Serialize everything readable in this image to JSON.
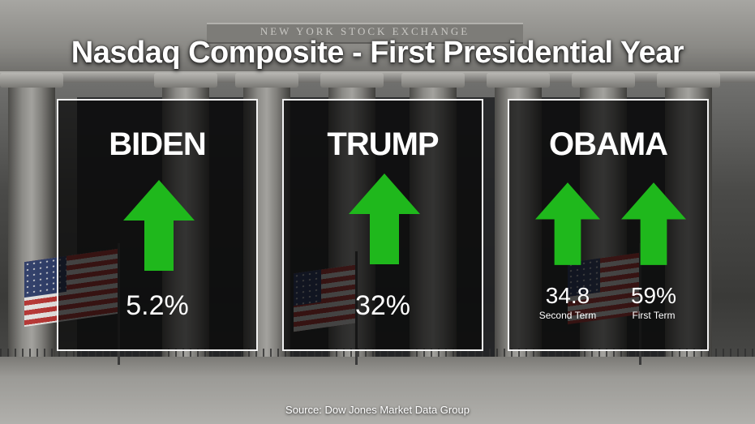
{
  "title": "Nasdaq Composite - First Presidential Year",
  "building_inscription": "NEW YORK STOCK EXCHANGE",
  "source": "Source: Dow Jones Market Data Group",
  "colors": {
    "arrow": "#1fb81c",
    "panel_border": "#f2f2f2",
    "text": "#ffffff"
  },
  "panels": [
    {
      "name": "BIDEN",
      "value": "5.2%",
      "icon": "up-arrow-icon"
    },
    {
      "name": "TRUMP",
      "value": "32%",
      "icon": "up-arrow-icon"
    },
    {
      "name": "OBAMA",
      "entries": [
        {
          "value": "34.8",
          "label": "Second Term",
          "icon": "up-arrow-icon"
        },
        {
          "value": "59%",
          "label": "First Term",
          "icon": "up-arrow-icon"
        }
      ]
    }
  ]
}
